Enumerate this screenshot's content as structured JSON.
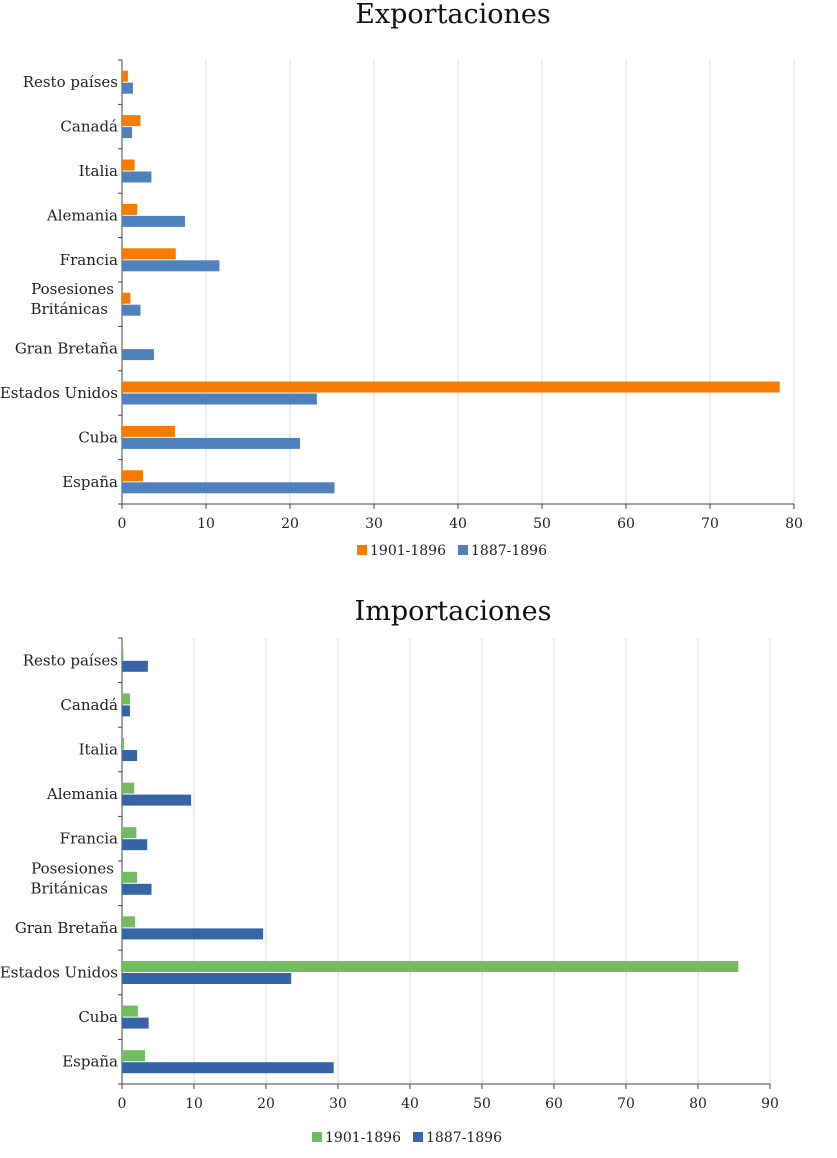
{
  "chart_data": [
    {
      "type": "bar",
      "orientation": "horizontal",
      "title": "Exportaciones",
      "categories": [
        "España",
        "Cuba",
        "Estados Unidos",
        "Gran Bretaña",
        "Posesiones Británicas",
        "Francia",
        "Alemania",
        "Italia",
        "Canadá",
        "Resto países"
      ],
      "category_lines": [
        [
          "España"
        ],
        [
          "Cuba"
        ],
        [
          "Estados Unidos"
        ],
        [
          "Gran Bretaña"
        ],
        [
          "Posesiones",
          "Británicas"
        ],
        [
          "Francia"
        ],
        [
          "Alemania"
        ],
        [
          "Italia"
        ],
        [
          "Canadá"
        ],
        [
          "Resto países"
        ]
      ],
      "series": [
        {
          "name": "1901-1896",
          "color": "#f57c00",
          "values": [
            2.5,
            6.3,
            78.3,
            0.0,
            1.0,
            6.4,
            1.8,
            1.5,
            2.2,
            0.7
          ]
        },
        {
          "name": "1887-1896",
          "color": "#4f81bd",
          "values": [
            25.3,
            21.2,
            23.2,
            3.8,
            2.2,
            11.6,
            7.5,
            3.5,
            1.2,
            1.3
          ]
        }
      ],
      "xlim": [
        0,
        80
      ],
      "xticks": [
        0,
        10,
        20,
        30,
        40,
        50,
        60,
        70,
        80
      ],
      "grid": true,
      "legend": "bottom-center",
      "xlabel": "",
      "ylabel": ""
    },
    {
      "type": "bar",
      "orientation": "horizontal",
      "title": "Importaciones",
      "categories": [
        "España",
        "Cuba",
        "Estados Unidos",
        "Gran Bretaña",
        "Posesiones Británicas",
        "Francia",
        "Alemania",
        "Italia",
        "Canadá",
        "Resto países"
      ],
      "category_lines": [
        [
          "España"
        ],
        [
          "Cuba"
        ],
        [
          "Estados Unidos"
        ],
        [
          "Gran Bretaña"
        ],
        [
          "Posesiones",
          "Británicas"
        ],
        [
          "Francia"
        ],
        [
          "Alemania"
        ],
        [
          "Italia"
        ],
        [
          "Canadá"
        ],
        [
          "Resto países"
        ]
      ],
      "series": [
        {
          "name": "1901-1896",
          "color": "#72bb61",
          "values": [
            3.2,
            2.2,
            85.6,
            1.8,
            2.1,
            2.0,
            1.7,
            0.3,
            1.1,
            0.2
          ]
        },
        {
          "name": "1887-1896",
          "color": "#3665a6",
          "values": [
            29.4,
            3.7,
            23.5,
            19.6,
            4.1,
            3.5,
            9.6,
            2.1,
            1.1,
            3.6
          ]
        }
      ],
      "xlim": [
        0,
        90
      ],
      "xticks": [
        0,
        10,
        20,
        30,
        40,
        50,
        60,
        70,
        80,
        90
      ],
      "grid": true,
      "legend": "bottom-center",
      "xlabel": "",
      "ylabel": ""
    }
  ]
}
